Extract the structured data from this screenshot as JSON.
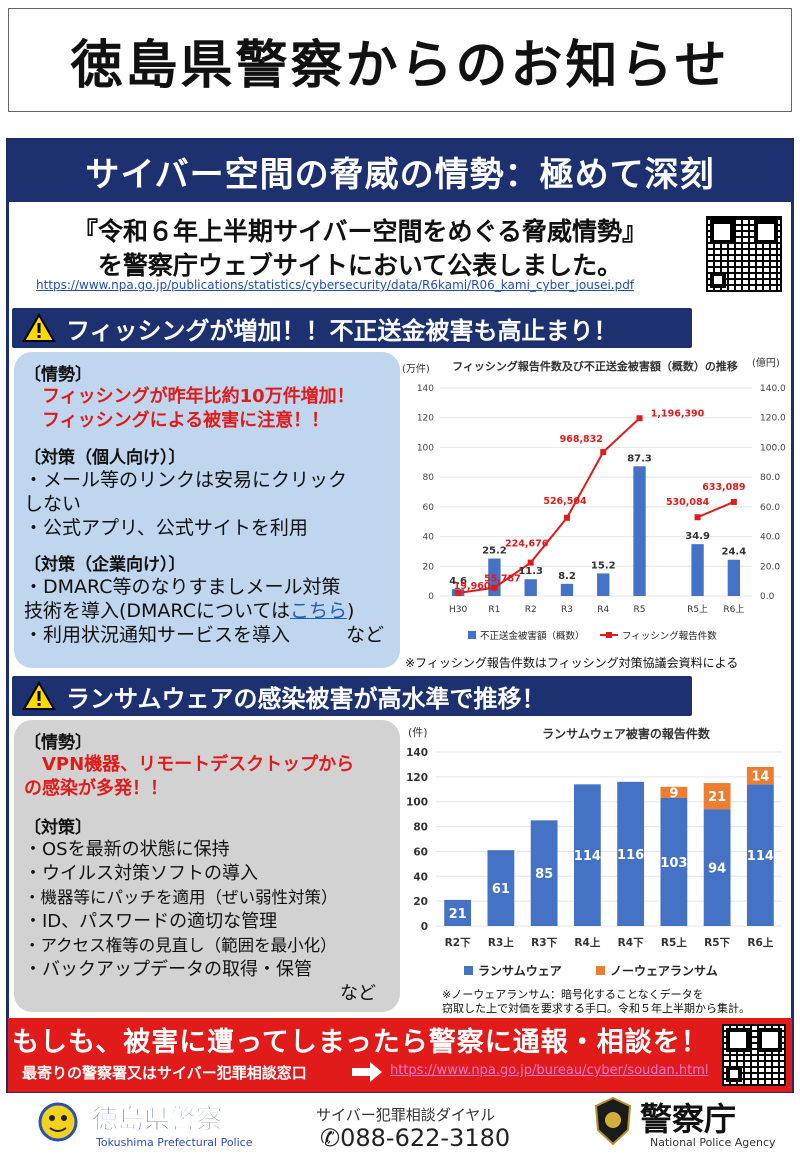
{
  "header": {
    "title": "徳島県警察からのお知らせ"
  },
  "banner": {
    "title": "サイバー空間の脅威の情勢：極めて深刻"
  },
  "announcement": {
    "line1": "『令和６年上半期サイバー空間をめぐる脅威情勢』",
    "line2": "を警察庁ウェブサイトにおいて公表しました。",
    "url": "https://www.npa.go.jp/publications/statistics/cybersecurity/data/R6kami/R06_kami_cyber_jousei.pdf"
  },
  "phishing": {
    "heading": "フィッシングが増加！！不正送金被害も高止まり！",
    "situation_title": "〔情勢〕",
    "situation_lines": [
      "フィッシングが昨年比約10万件増加！",
      "フィッシングによる被害に注意！！"
    ],
    "personal_title": "〔対策（個人向け）〕",
    "personal_lines": [
      "・メール等のリンクは安易にクリック",
      "しない",
      "・公式アプリ、公式サイトを利用"
    ],
    "corporate_title": "〔対策（企業向け）〕",
    "corporate_line1": "・DMARC等のなりすましメール対策",
    "corporate_line2a": "技術を導入(DMARCについては",
    "corporate_link": "こちら",
    "corporate_line2b": ")",
    "corporate_line3": "・利用状況通知サービスを導入",
    "corporate_etc": "など",
    "note": "※フィッシング報告件数はフィッシング対策協議会資料による"
  },
  "ransomware": {
    "heading": "ランサムウェアの感染被害が高水準で推移！",
    "situation_title": "〔情勢〕",
    "situation_lines": [
      "VPN機器、リモートデスクトップから",
      "の感染が多発！！"
    ],
    "measures_title": "〔対策〕",
    "measures": [
      "・OSを最新の状態に保持",
      "・ウイルス対策ソフトの導入",
      "・機器等にパッチを適用（ぜい弱性対策）",
      "・ID、パスワードの適切な管理",
      "・アクセス権等の見直し（範囲を最小化）",
      "・バックアップデータの取得・保管"
    ],
    "measures_etc": "など",
    "note_line1": "※ノーウェアランサム：暗号化することなくデータを",
    "note_line2": "窃取した上で対価を要求する手口。令和５年上半期から集計。"
  },
  "bottom": {
    "main": "もしも、被害に遭ってしまったら警察に通報・相談を！",
    "sub": "最寄りの警察署又はサイバー犯罪相談窓口",
    "url": "https://www.npa.go.jp/bureau/cyber/soudan.html"
  },
  "footer": {
    "police_name": "徳島県警察",
    "police_en": "Tokushima Prefectural Police",
    "dial_label": "サイバー犯罪相談ダイヤル",
    "dial_number": "088-622-3180",
    "npa_name": "警察庁",
    "npa_en": "National Police Agency"
  },
  "colors": {
    "navy": "#1d3170",
    "red": "#e11a1a",
    "bar_blue": "#4472c4",
    "orange": "#ed7d31"
  },
  "chart_data": [
    {
      "type": "bar",
      "title": "フィッシング報告件数及び不正送金被害額（概数）の推移",
      "categories": [
        "H30",
        "R1",
        "R2",
        "R3",
        "R4",
        "R5",
        "R5上",
        "R6上"
      ],
      "y_left_unit": "(億円)",
      "y_right_unit": "(万件)",
      "y_left_ticks": [
        "0.0",
        "20.0",
        "40.0",
        "60.0",
        "80.0",
        "100.0",
        "120.0",
        "140.0"
      ],
      "y_right_ticks": [
        "0",
        "20",
        "40",
        "60",
        "80",
        "100",
        "120",
        "140"
      ],
      "ylim": [
        0,
        140
      ],
      "series": [
        {
          "name": "不正送金被害額（概数）",
          "kind": "bar",
          "values": [
            4.6,
            25.2,
            11.3,
            8.2,
            15.2,
            87.3,
            34.9,
            24.4
          ]
        },
        {
          "name": "フィッシング報告件数",
          "kind": "line",
          "values": [
            19960,
            55787,
            224676,
            526504,
            968832,
            1196390,
            530084,
            633089
          ],
          "labels": [
            "19,960",
            "55,787",
            "224,676",
            "526,504",
            "968,832",
            "1,196,390",
            "530,084",
            "633,089"
          ]
        }
      ],
      "legend": "bottom"
    },
    {
      "type": "bar",
      "title": "ランサムウェア被害の報告件数",
      "ylabel": "(件)",
      "categories": [
        "R2下",
        "R3上",
        "R3下",
        "R4上",
        "R4下",
        "R5上",
        "R5下",
        "R6上"
      ],
      "y_ticks": [
        "0",
        "20",
        "40",
        "60",
        "80",
        "100",
        "120",
        "140"
      ],
      "ylim": [
        0,
        140
      ],
      "series": [
        {
          "name": "ランサムウェア",
          "values": [
            21,
            61,
            85,
            114,
            116,
            103,
            94,
            114
          ]
        },
        {
          "name": "ノーウェアランサム",
          "values": [
            null,
            null,
            null,
            null,
            null,
            9,
            21,
            14
          ]
        }
      ],
      "legend": "bottom"
    }
  ]
}
